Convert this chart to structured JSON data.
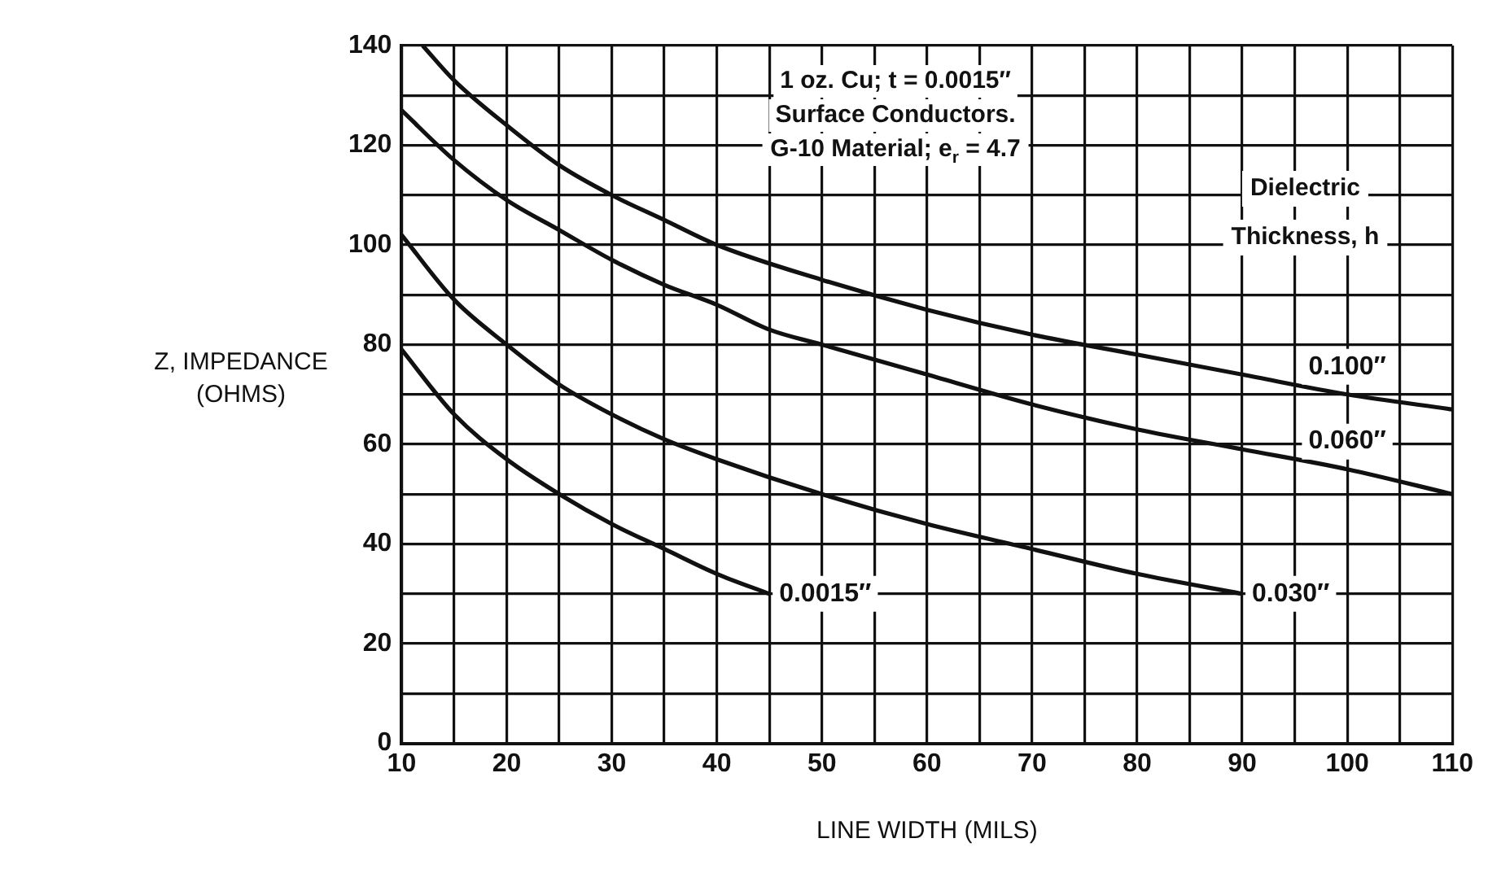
{
  "chart_data": {
    "type": "line",
    "xlabel": "LINE WIDTH (MILS)",
    "ylabel": "Z, IMPEDANCE (OHMS)",
    "legend_title": "Dielectric Thickness, h",
    "annotations": [
      "1 oz. Cu; t = 0.0015″",
      "Surface Conductors.",
      "G-10 Material; e$_{r}$ = 4.7"
    ],
    "xlim": [
      10,
      110
    ],
    "ylim": [
      0,
      140
    ],
    "xticks": [
      10,
      {
        "value": 15,
        "label": null
      },
      20,
      {
        "value": 25,
        "label": null
      },
      30,
      {
        "value": 35,
        "label": null
      },
      40,
      {
        "value": 45,
        "label": null
      },
      50,
      {
        "value": 55,
        "label": null
      },
      60,
      {
        "value": 65,
        "label": null
      },
      70,
      {
        "value": 75,
        "label": null
      },
      80,
      {
        "value": 85,
        "label": null
      },
      90,
      {
        "value": 95,
        "label": null
      },
      100,
      {
        "value": 105,
        "label": null
      },
      110
    ],
    "yticks": [
      0,
      {
        "value": 10,
        "label": null
      },
      20,
      {
        "value": 30,
        "label": null
      },
      40,
      {
        "value": 50,
        "label": null
      },
      60,
      {
        "value": 70,
        "label": null
      },
      80,
      {
        "value": 90,
        "label": null
      },
      100,
      {
        "value": 110,
        "label": null
      },
      120,
      {
        "value": 130,
        "label": null
      },
      140
    ],
    "grid": true,
    "legend": false,
    "marker": "none",
    "line_style": "solid",
    "series": [
      {
        "name": "0.100″",
        "color": "#111111",
        "x": [
          12,
          15,
          20,
          25,
          30,
          35,
          40,
          50,
          60,
          70,
          80,
          90,
          100,
          110
        ],
        "values": [
          140,
          133,
          124,
          116,
          110,
          105,
          100,
          93,
          87,
          82,
          78,
          74,
          70,
          67
        ]
      },
      {
        "name": "0.060″",
        "color": "#111111",
        "x": [
          10,
          15,
          20,
          25,
          30,
          35,
          40,
          45,
          50,
          60,
          70,
          80,
          90,
          100,
          110
        ],
        "values": [
          127,
          117,
          109,
          103,
          97,
          92,
          88,
          83,
          80,
          74,
          68,
          63,
          59,
          55,
          50
        ]
      },
      {
        "name": "0.030″",
        "color": "#111111",
        "x": [
          10,
          15,
          20,
          25,
          30,
          35,
          40,
          50,
          60,
          70,
          80,
          90
        ],
        "values": [
          102,
          89,
          80,
          72,
          66,
          61,
          57,
          50,
          44,
          39,
          34,
          30
        ]
      },
      {
        "name": "0.0015″",
        "color": "#111111",
        "x": [
          10,
          15,
          20,
          25,
          30,
          35,
          40,
          45
        ],
        "values": [
          79,
          66,
          57,
          50,
          44,
          39,
          34,
          30
        ]
      }
    ]
  }
}
